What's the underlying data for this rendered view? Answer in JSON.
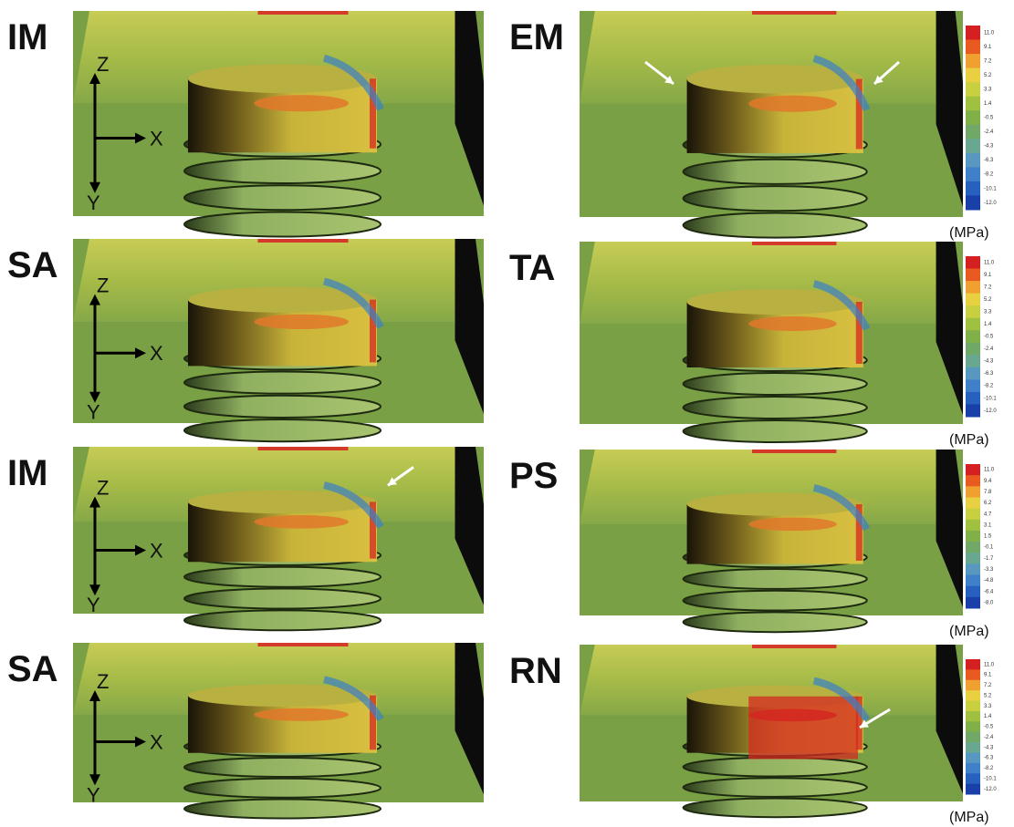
{
  "left": [
    {
      "label": "IM",
      "axes": {
        "z": "Z",
        "x": "X",
        "y": "Y"
      }
    },
    {
      "label": "SA",
      "axes": {
        "z": "Z",
        "x": "X",
        "y": "Y"
      }
    },
    {
      "label": "IM",
      "axes": {
        "z": "Z",
        "x": "X",
        "y": "Y"
      }
    },
    {
      "label": "SA",
      "axes": {
        "z": "Z",
        "x": "X",
        "y": "Y"
      }
    }
  ],
  "right": [
    {
      "label": "EM",
      "colorbar": [
        "11.0",
        "9.1",
        "7.2",
        "5.2",
        "3.3",
        "1.4",
        "-0.5",
        "-2.4",
        "-4.3",
        "-6.3",
        "-8.2",
        "-10.1",
        "-12.0"
      ],
      "unit": "(MPa)"
    },
    {
      "label": "TA",
      "colorbar": [
        "11.0",
        "9.1",
        "7.2",
        "5.2",
        "3.3",
        "1.4",
        "-0.5",
        "-2.4",
        "-4.3",
        "-6.3",
        "-8.2",
        "-10.1",
        "-12.0"
      ],
      "unit": "(MPa)"
    },
    {
      "label": "PS",
      "colorbar": [
        "11.0",
        "9.4",
        "7.8",
        "6.2",
        "4.7",
        "3.1",
        "1.5",
        "-0.1",
        "-1.7",
        "-3.3",
        "-4.8",
        "-6.4",
        "-8.0"
      ],
      "unit": "(MPa)"
    },
    {
      "label": "RN",
      "colorbar": [
        "11.0",
        "9.1",
        "7.2",
        "5.2",
        "3.3",
        "1.4",
        "-0.5",
        "-2.4",
        "-4.3",
        "-6.3",
        "-8.2",
        "-10.1",
        "-12.0"
      ],
      "unit": "(MPa)"
    }
  ]
}
